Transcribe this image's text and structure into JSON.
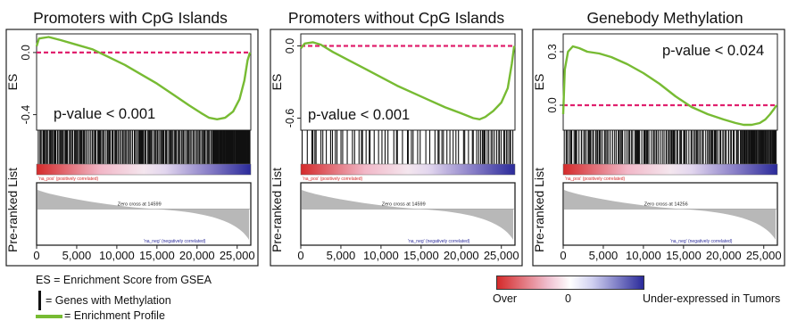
{
  "chart_data": [
    {
      "type": "line",
      "title": "Promoters with CpG Islands",
      "ylabel_top": "ES",
      "ylabel_bottom": "Pre-ranked List",
      "yticks": [
        0.0,
        -0.4
      ],
      "ytick_labels": [
        "0.0",
        "-0.4"
      ],
      "ylim": [
        -0.5,
        0.12
      ],
      "xlim": [
        0,
        26700
      ],
      "xticks": [
        0,
        5000,
        10000,
        15000,
        20000,
        25000
      ],
      "xtick_labels": [
        "0",
        "5,000",
        "10,000",
        "15,000",
        "20,000",
        "25,000"
      ],
      "pvalue_text": "p-value < 0.001",
      "zero_cross_text": "Zero cross at 14599",
      "pos_label": "'na_pos' (positively correlated)",
      "neg_label": "'na_neg' (negatively correlated)",
      "series": [
        {
          "x": [
            0,
            300,
            1500,
            3000,
            5000,
            7000,
            9000,
            11000,
            13000,
            15000,
            17000,
            19000,
            20500,
            21500,
            22500,
            23500,
            24500,
            25300,
            25900,
            26300,
            26600
          ],
          "y": [
            0.04,
            0.09,
            0.1,
            0.08,
            0.05,
            0.02,
            -0.03,
            -0.08,
            -0.14,
            -0.2,
            -0.27,
            -0.34,
            -0.39,
            -0.42,
            -0.43,
            -0.42,
            -0.38,
            -0.3,
            -0.18,
            -0.05,
            0.0
          ]
        }
      ],
      "hits_pattern": "dense"
    },
    {
      "type": "line",
      "title": "Promoters without CpG Islands",
      "ylabel_top": "ES",
      "ylabel_bottom": "Pre-ranked List",
      "yticks": [
        0.0,
        -0.6
      ],
      "ytick_labels": [
        "0.0",
        "-0.6"
      ],
      "ylim": [
        -0.7,
        0.1
      ],
      "xlim": [
        0,
        26700
      ],
      "xticks": [
        0,
        5000,
        10000,
        15000,
        20000,
        25000
      ],
      "xtick_labels": [
        "0",
        "5,000",
        "10,000",
        "15,000",
        "20,000",
        "25,000"
      ],
      "pvalue_text": "p-value < 0.001",
      "zero_cross_text": "Zero cross at 14599",
      "pos_label": "'na_pos' (positively correlated)",
      "neg_label": "'na_neg' (negatively correlated)",
      "series": [
        {
          "x": [
            0,
            500,
            1500,
            2500,
            4000,
            6000,
            8000,
            10000,
            12000,
            14000,
            16000,
            18000,
            20000,
            21500,
            22300,
            23000,
            24000,
            25000,
            25800,
            26300,
            26600
          ],
          "y": [
            -0.02,
            0.02,
            0.03,
            0.01,
            -0.05,
            -0.12,
            -0.19,
            -0.26,
            -0.33,
            -0.39,
            -0.45,
            -0.51,
            -0.56,
            -0.6,
            -0.61,
            -0.59,
            -0.54,
            -0.47,
            -0.35,
            -0.15,
            0.0
          ]
        }
      ],
      "hits_pattern": "sparse"
    },
    {
      "type": "line",
      "title": "Genebody Methylation",
      "ylabel_top": "ES",
      "ylabel_bottom": "Pre-ranked List",
      "yticks": [
        0.3,
        0.0
      ],
      "ytick_labels": [
        "0.3",
        "0.0"
      ],
      "ylim": [
        -0.14,
        0.4
      ],
      "xlim": [
        0,
        26700
      ],
      "xticks": [
        0,
        5000,
        10000,
        15000,
        20000,
        25000
      ],
      "xtick_labels": [
        "0",
        "5,000",
        "10,000",
        "15,000",
        "20,000",
        "25,000"
      ],
      "pvalue_text": "p-value < 0.024",
      "zero_cross_text": "Zero cross at 14256",
      "pos_label": "'na_pos' (positively correlated)",
      "neg_label": "'na_neg' (negatively correlated)",
      "series": [
        {
          "x": [
            0,
            200,
            600,
            1200,
            2000,
            3000,
            4500,
            6000,
            8000,
            10000,
            12000,
            14000,
            16000,
            18000,
            20000,
            21500,
            22500,
            23500,
            24500,
            25200,
            25800,
            26300,
            26600
          ],
          "y": [
            -0.05,
            0.2,
            0.3,
            0.33,
            0.32,
            0.3,
            0.29,
            0.27,
            0.23,
            0.18,
            0.12,
            0.05,
            -0.01,
            -0.05,
            -0.08,
            -0.1,
            -0.11,
            -0.11,
            -0.1,
            -0.08,
            -0.05,
            -0.02,
            0.0
          ]
        }
      ],
      "hits_pattern": "medium"
    }
  ],
  "legend": {
    "es": "ES = Enrichment Score from GSEA",
    "genes": "= Genes with Methylation",
    "profile": "= Enrichment Profile"
  },
  "colorbar": {
    "left": "Over",
    "mid": "0",
    "right": "Under-expressed in Tumors"
  },
  "colors": {
    "line": "#77bb33",
    "zero": "#e0206e",
    "pos": "#d42a2a",
    "neg": "#2a2a9a",
    "gray": "#b8b8b8"
  }
}
